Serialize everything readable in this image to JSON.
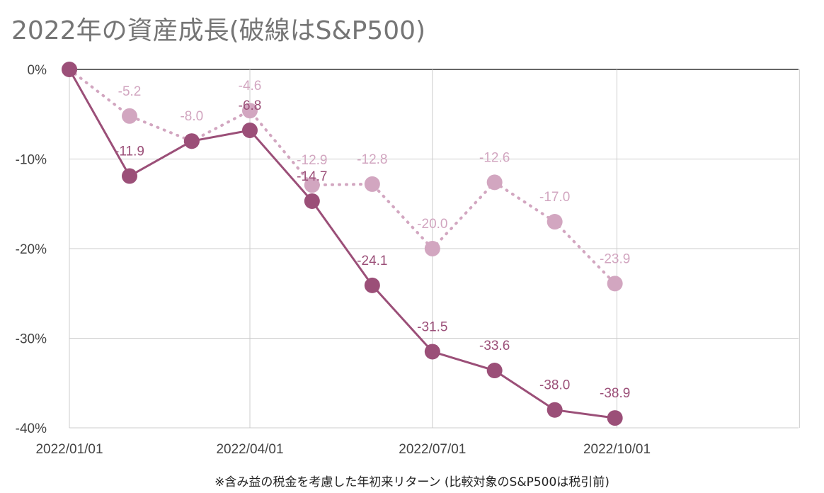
{
  "chart_data": {
    "type": "line",
    "title": "2022年の資産成長(破線はS&P500)",
    "footnote": "※含み益の税金を考慮した年初来リターン (比較対象のS&P500は税引前)",
    "x_ticks": [
      "2022/01/01",
      "2022/04/01",
      "2022/07/01",
      "2022/10/01"
    ],
    "y_ticks": [
      "0%",
      "-10%",
      "-20%",
      "-30%",
      "-40%"
    ],
    "ylim": [
      -40,
      0
    ],
    "grid": true,
    "series": [
      {
        "color": "#9b4f78",
        "style": "solid",
        "x": [
          "2022-01-01",
          "2022-01-31",
          "2022-03-03",
          "2022-04-01",
          "2022-05-02",
          "2022-06-01",
          "2022-07-01",
          "2022-08-01",
          "2022-08-31",
          "2022-09-30"
        ],
        "values": [
          0,
          -11.9,
          -8.0,
          -6.8,
          -14.7,
          -24.1,
          -31.5,
          -33.6,
          -38.0,
          -38.9
        ],
        "labels": [
          "",
          "-11.9",
          "",
          "-6.8",
          "-14.7",
          "-24.1",
          "-31.5",
          "-33.6",
          "-38.0",
          "-38.9"
        ]
      },
      {
        "color": "#d2a6c0",
        "style": "dotted",
        "x": [
          "2022-01-01",
          "2022-01-31",
          "2022-03-03",
          "2022-04-01",
          "2022-05-02",
          "2022-06-01",
          "2022-07-01",
          "2022-08-01",
          "2022-08-31",
          "2022-09-30"
        ],
        "values": [
          0,
          -5.2,
          -8.0,
          -4.6,
          -12.9,
          -12.8,
          -20.0,
          -12.6,
          -17.0,
          -23.9
        ],
        "labels": [
          "",
          "-5.2",
          "-8.0",
          "-4.6",
          "-12.9",
          "-12.8",
          "-20.0",
          "-12.6",
          "-17.0",
          "-23.9"
        ]
      }
    ]
  }
}
